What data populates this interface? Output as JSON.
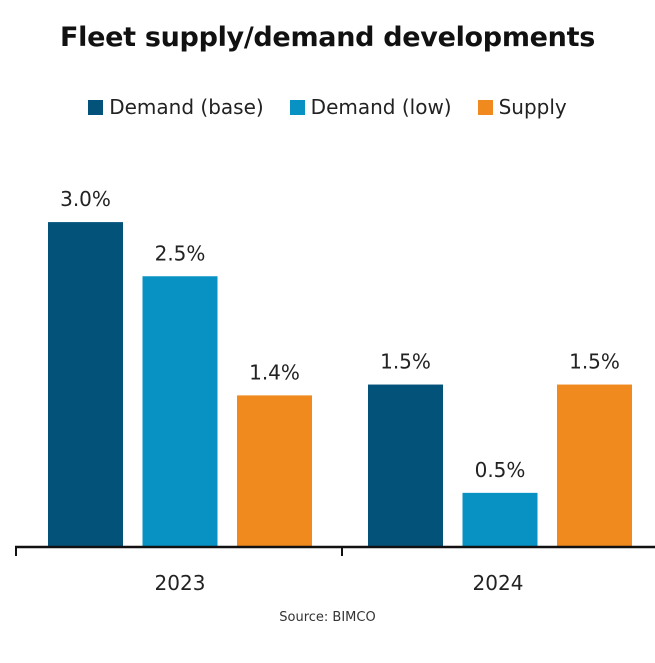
{
  "chart_data": {
    "type": "bar",
    "title": "Fleet supply/demand developments",
    "categories": [
      "2023",
      "2024"
    ],
    "series": [
      {
        "name": "Demand (base)",
        "color": "#02527A",
        "values": [
          3.0,
          1.5
        ],
        "labels": [
          "3.0%",
          "1.5%"
        ]
      },
      {
        "name": "Demand (low)",
        "color": "#0892C3",
        "values": [
          2.5,
          0.5
        ],
        "labels": [
          "2.5%",
          "0.5%"
        ]
      },
      {
        "name": "Supply",
        "color": "#F08A1F",
        "values": [
          1.4,
          1.5
        ],
        "labels": [
          "1.4%",
          "1.5%"
        ]
      }
    ],
    "xlabel": "",
    "ylabel": "",
    "ylim": [
      0,
      3.0
    ],
    "grid": false,
    "legend_position": "top",
    "value_unit": "%",
    "source": "Source: BIMCO"
  }
}
